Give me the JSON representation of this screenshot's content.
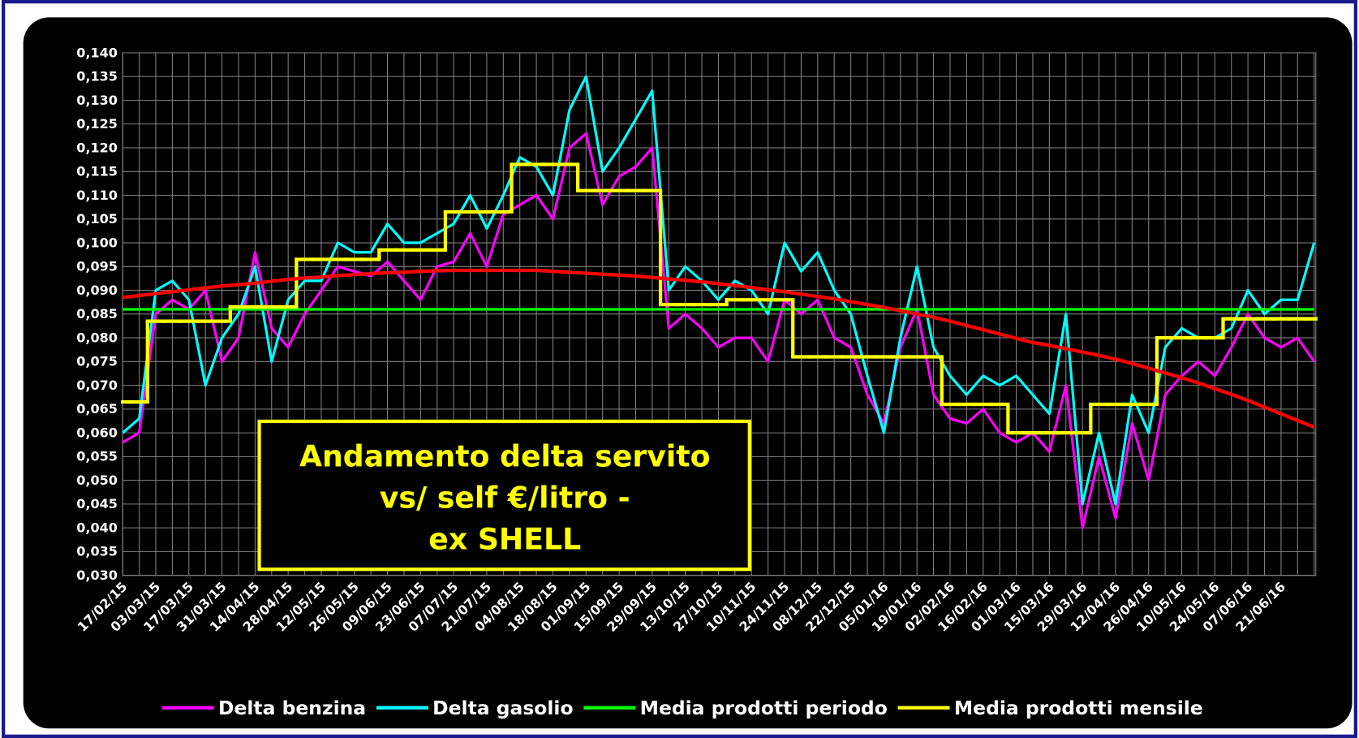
{
  "chart_data": {
    "type": "line",
    "annotation": [
      "Andamento delta servito",
      "vs/ self €/litro -",
      "ex SHELL"
    ],
    "categories": [
      "17/02/15",
      null,
      "03/03/15",
      null,
      "17/03/15",
      null,
      "31/03/15",
      null,
      "14/04/15",
      null,
      "28/04/15",
      null,
      "12/05/15",
      null,
      "26/05/15",
      null,
      "09/06/15",
      null,
      "23/06/15",
      null,
      "07/07/15",
      null,
      "21/07/15",
      null,
      "04/08/15",
      null,
      "18/08/15",
      null,
      "01/09/15",
      null,
      "15/09/15",
      null,
      "29/09/15",
      null,
      "13/10/15",
      null,
      "27/10/15",
      null,
      "10/11/15",
      null,
      "24/11/15",
      null,
      "08/12/15",
      null,
      "22/12/15",
      null,
      "05/01/16",
      null,
      "19/01/16",
      null,
      "02/02/16",
      null,
      "16/02/16",
      null,
      "01/03/16",
      null,
      "15/03/16",
      null,
      "29/03/16",
      null,
      "12/04/16",
      null,
      "26/04/16",
      null,
      "10/05/16",
      null,
      "24/05/16",
      null,
      "07/06/16",
      null,
      "21/06/16",
      null,
      null
    ],
    "series": [
      {
        "name": "Delta benzina",
        "color": "#ff00ff",
        "values": [
          0.058,
          0.06,
          0.085,
          0.088,
          0.086,
          0.09,
          0.075,
          0.08,
          0.098,
          0.082,
          0.078,
          0.085,
          0.09,
          0.095,
          0.094,
          0.093,
          0.096,
          0.092,
          0.088,
          0.095,
          0.096,
          0.102,
          0.095,
          0.106,
          0.108,
          0.11,
          0.105,
          0.12,
          0.123,
          0.108,
          0.114,
          0.116,
          0.12,
          0.082,
          0.085,
          0.082,
          0.078,
          0.08,
          0.08,
          0.075,
          0.088,
          0.085,
          0.088,
          0.08,
          0.078,
          0.068,
          0.062,
          0.078,
          0.086,
          0.068,
          0.063,
          0.062,
          0.065,
          0.06,
          0.058,
          0.06,
          0.056,
          0.07,
          0.04,
          0.055,
          0.042,
          0.062,
          0.05,
          0.068,
          0.072,
          0.075,
          0.072,
          0.078,
          0.085,
          0.08,
          0.078,
          0.08,
          0.075
        ]
      },
      {
        "name": "Delta gasolio",
        "color": "#00ffff",
        "values": [
          0.06,
          0.063,
          0.09,
          0.092,
          0.088,
          0.07,
          0.08,
          0.085,
          0.095,
          0.075,
          0.088,
          0.092,
          0.092,
          0.1,
          0.098,
          0.098,
          0.104,
          0.1,
          0.1,
          0.102,
          0.104,
          0.11,
          0.103,
          0.11,
          0.118,
          0.116,
          0.11,
          0.128,
          0.135,
          0.115,
          0.12,
          0.126,
          0.132,
          0.09,
          0.095,
          0.092,
          0.088,
          0.092,
          0.09,
          0.085,
          0.1,
          0.094,
          0.098,
          0.09,
          0.085,
          0.072,
          0.06,
          0.08,
          0.095,
          0.078,
          0.072,
          0.068,
          0.072,
          0.07,
          0.072,
          0.068,
          0.064,
          0.085,
          0.045,
          0.06,
          0.045,
          0.068,
          0.06,
          0.078,
          0.082,
          0.08,
          0.08,
          0.082,
          0.09,
          0.085,
          0.088,
          0.088,
          0.1
        ]
      },
      {
        "name": "Media prodotti periodo",
        "color": "#00ff00",
        "values": [
          0.086,
          0.086,
          0.086,
          0.086,
          0.086,
          0.086,
          0.086,
          0.086,
          0.086,
          0.086,
          0.086,
          0.086,
          0.086,
          0.086,
          0.086,
          0.086,
          0.086,
          0.086,
          0.086,
          0.086,
          0.086,
          0.086,
          0.086,
          0.086,
          0.086,
          0.086,
          0.086,
          0.086,
          0.086,
          0.086,
          0.086,
          0.086,
          0.086,
          0.086,
          0.086,
          0.086,
          0.086,
          0.086,
          0.086,
          0.086,
          0.086,
          0.086,
          0.086,
          0.086,
          0.086,
          0.086,
          0.086,
          0.086,
          0.086,
          0.086,
          0.086,
          0.086,
          0.086,
          0.086,
          0.086,
          0.086,
          0.086,
          0.086,
          0.086,
          0.086,
          0.086,
          0.086,
          0.086,
          0.086,
          0.086,
          0.086,
          0.086,
          0.086,
          0.086,
          0.086,
          0.086,
          0.086,
          0.086
        ]
      },
      {
        "name": "Media prodotti mensile",
        "color": "#ffff00",
        "step": true,
        "values": [
          0.0665,
          0.0665,
          0.0835,
          0.0835,
          0.0835,
          0.0835,
          0.0835,
          0.0865,
          0.0865,
          0.0865,
          0.0865,
          0.0965,
          0.0965,
          0.0965,
          0.0965,
          0.0965,
          0.0985,
          0.0985,
          0.0985,
          0.0985,
          0.1065,
          0.1065,
          0.1065,
          0.1065,
          0.1165,
          0.1165,
          0.1165,
          0.1165,
          0.111,
          0.111,
          0.111,
          0.111,
          0.111,
          0.087,
          0.087,
          0.087,
          0.087,
          0.088,
          0.088,
          0.088,
          0.088,
          0.076,
          0.076,
          0.076,
          0.076,
          0.076,
          0.076,
          0.076,
          0.076,
          0.076,
          0.066,
          0.066,
          0.066,
          0.066,
          0.06,
          0.06,
          0.06,
          0.06,
          0.06,
          0.066,
          0.066,
          0.066,
          0.066,
          0.08,
          0.08,
          0.08,
          0.08,
          0.084,
          0.084,
          0.084,
          0.084,
          0.084,
          0.084
        ]
      },
      {
        "color": "#ff0000",
        "values": [
          0.0885,
          0.0889,
          0.0893,
          0.0897,
          0.0901,
          0.0905,
          0.0909,
          0.0912,
          0.0915,
          0.0919,
          0.0923,
          0.0926,
          0.0928,
          0.0931,
          0.0933,
          0.0935,
          0.0937,
          0.0938,
          0.094,
          0.0941,
          0.0942,
          0.0942,
          0.0942,
          0.0942,
          0.0942,
          0.0942,
          0.094,
          0.0938,
          0.0936,
          0.0934,
          0.0932,
          0.093,
          0.0927,
          0.0924,
          0.0921,
          0.0918,
          0.0914,
          0.091,
          0.0906,
          0.0901,
          0.0897,
          0.0892,
          0.0887,
          0.0882,
          0.0876,
          0.087,
          0.0864,
          0.0857,
          0.085,
          0.0843,
          0.0835,
          0.0826,
          0.0817,
          0.0808,
          0.0799,
          0.079,
          0.0784,
          0.0777,
          0.077,
          0.0763,
          0.0755,
          0.0746,
          0.0736,
          0.0726,
          0.0716,
          0.0705,
          0.0693,
          0.0681,
          0.0668,
          0.0654,
          0.064,
          0.0626,
          0.0612
        ]
      }
    ],
    "ylim": [
      0.03,
      0.14
    ],
    "yticks": [
      {
        "value": 0.03,
        "label": "0,030"
      },
      {
        "value": 0.035,
        "label": "0,035"
      },
      {
        "value": 0.04,
        "label": "0,040"
      },
      {
        "value": 0.045,
        "label": "0,045"
      },
      {
        "value": 0.05,
        "label": "0,050"
      },
      {
        "value": 0.055,
        "label": "0,055"
      },
      {
        "value": 0.06,
        "label": "0,060"
      },
      {
        "value": 0.065,
        "label": "0,065"
      },
      {
        "value": 0.07,
        "label": "0,070"
      },
      {
        "value": 0.075,
        "label": "0,075"
      },
      {
        "value": 0.08,
        "label": "0,080"
      },
      {
        "value": 0.085,
        "label": "0,085"
      },
      {
        "value": 0.09,
        "label": "0,090"
      },
      {
        "value": 0.095,
        "label": "0,095"
      },
      {
        "value": 0.1,
        "label": "0,100"
      },
      {
        "value": 0.105,
        "label": "0,105"
      },
      {
        "value": 0.11,
        "label": "0,110"
      },
      {
        "value": 0.115,
        "label": "0,115"
      },
      {
        "value": 0.12,
        "label": "0,120"
      },
      {
        "value": 0.125,
        "label": "0,125"
      },
      {
        "value": 0.13,
        "label": "0,130"
      },
      {
        "value": 0.135,
        "label": "0,135"
      },
      {
        "value": 0.14,
        "label": "0,140"
      }
    ],
    "grid": true,
    "legend": "bottom"
  }
}
